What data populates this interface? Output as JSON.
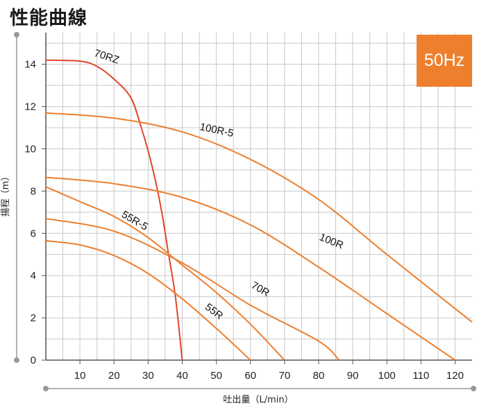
{
  "page": {
    "title": "性能曲線"
  },
  "badge": {
    "text": "50Hz",
    "color": "#ee7f2d"
  },
  "chart_data": {
    "type": "line",
    "title": "",
    "xlabel": "吐出量（L/min）",
    "ylabel": "揚程（m）",
    "xlim": [
      0,
      125
    ],
    "ylim": [
      0,
      15.5
    ],
    "xticks": [
      10,
      20,
      30,
      40,
      50,
      60,
      70,
      80,
      90,
      100,
      110,
      120
    ],
    "yticks": [
      0,
      2,
      4,
      6,
      8,
      10,
      12,
      14
    ],
    "grid": true,
    "legend": "none (curves labeled inline)",
    "series": [
      {
        "name": "70RZ",
        "color": "#e0452b",
        "label": {
          "text": "70RZ",
          "at": [
            14,
            14.4
          ],
          "angle": 18
        },
        "points": [
          [
            0,
            14.2
          ],
          [
            10,
            14.15
          ],
          [
            15,
            13.9
          ],
          [
            20,
            13.3
          ],
          [
            25,
            12.4
          ],
          [
            28,
            11.0
          ],
          [
            30,
            9.9
          ],
          [
            32,
            8.6
          ],
          [
            34,
            7.0
          ],
          [
            36,
            5.0
          ],
          [
            38,
            3.0
          ],
          [
            40,
            0
          ]
        ]
      },
      {
        "name": "100R-5",
        "color": "#ec7f2e",
        "label": {
          "text": "100R-5",
          "at": [
            45,
            10.9
          ],
          "angle": 12
        },
        "points": [
          [
            0,
            11.7
          ],
          [
            20,
            11.45
          ],
          [
            40,
            10.8
          ],
          [
            60,
            9.5
          ],
          [
            80,
            7.6
          ],
          [
            100,
            5.0
          ],
          [
            125,
            1.8
          ]
        ]
      },
      {
        "name": "100R",
        "color": "#ec7f2e",
        "label": {
          "text": "100R",
          "at": [
            80,
            5.7
          ],
          "angle": 22
        },
        "points": [
          [
            0,
            8.65
          ],
          [
            20,
            8.35
          ],
          [
            40,
            7.7
          ],
          [
            60,
            6.4
          ],
          [
            80,
            4.4
          ],
          [
            100,
            2.2
          ],
          [
            120,
            0
          ]
        ]
      },
      {
        "name": "55R-5",
        "color": "#ec7f2e",
        "label": {
          "text": "55R-5",
          "at": [
            22,
            6.8
          ],
          "angle": 30
        },
        "points": [
          [
            0,
            8.2
          ],
          [
            10,
            7.5
          ],
          [
            20,
            6.8
          ],
          [
            30,
            5.8
          ],
          [
            40,
            4.5
          ],
          [
            50,
            3.2
          ],
          [
            60,
            1.7
          ],
          [
            70,
            0
          ]
        ]
      },
      {
        "name": "70R",
        "color": "#ec7f2e",
        "label": {
          "text": "70R",
          "at": [
            60,
            3.45
          ],
          "angle": 30
        },
        "points": [
          [
            0,
            6.7
          ],
          [
            20,
            6.1
          ],
          [
            40,
            4.6
          ],
          [
            60,
            2.6
          ],
          [
            80,
            0.9
          ],
          [
            86,
            0
          ]
        ]
      },
      {
        "name": "55R",
        "color": "#ec7f2e",
        "label": {
          "text": "55R",
          "at": [
            46.5,
            2.45
          ],
          "angle": 37
        },
        "points": [
          [
            0,
            5.65
          ],
          [
            10,
            5.45
          ],
          [
            20,
            4.95
          ],
          [
            30,
            4.1
          ],
          [
            40,
            2.9
          ],
          [
            50,
            1.5
          ],
          [
            60,
            0
          ]
        ]
      }
    ]
  }
}
